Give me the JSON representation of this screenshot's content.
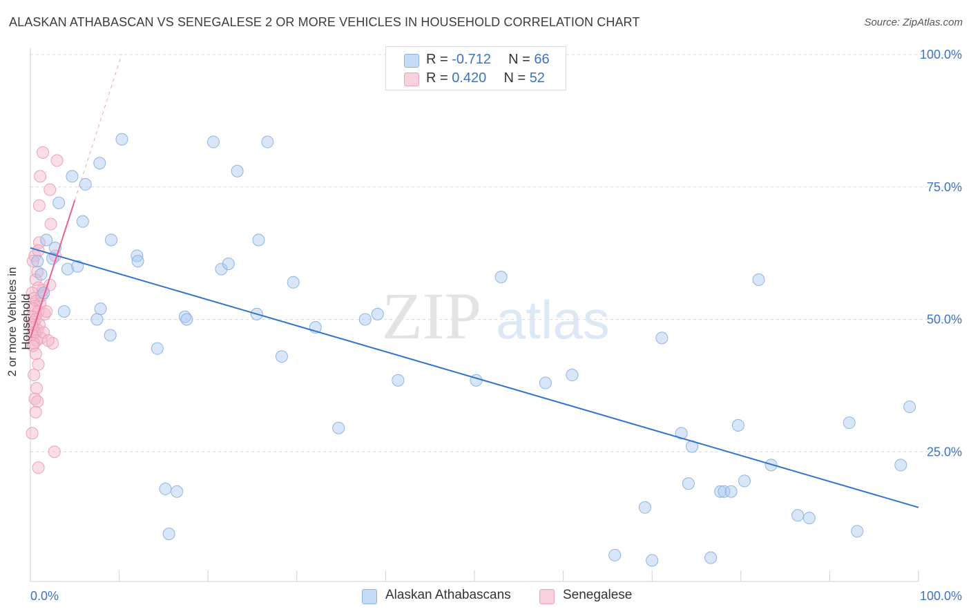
{
  "title": "ALASKAN ATHABASCAN VS SENEGALESE 2 OR MORE VEHICLES IN HOUSEHOLD CORRELATION CHART",
  "source": "Source: ZipAtlas.com",
  "watermark": {
    "zip": "ZIP",
    "atlas": "atlas"
  },
  "legend": {
    "rows": [
      {
        "r_label": "R = ",
        "r_value": "-0.712",
        "n_label": "N = ",
        "n_value": "66"
      },
      {
        "r_label": "R = ",
        "r_value": "0.420",
        "n_label": "N = ",
        "n_value": "52"
      }
    ]
  },
  "colors": {
    "blue": "#a9c8ef",
    "blue_line": "#2f73cc",
    "pink": "#f4b6c9",
    "pink_line": "#e8608f",
    "axis_text": "#3b73c4"
  },
  "chart_data": {
    "type": "scatter",
    "title": "ALASKAN ATHABASCAN VS SENEGALESE 2 OR MORE VEHICLES IN HOUSEHOLD CORRELATION CHART",
    "xlabel": "",
    "ylabel": "2 or more Vehicles in Household",
    "xlim": [
      0,
      100
    ],
    "ylim": [
      0,
      102
    ],
    "x_tick_labels": [
      "0.0%",
      "100.0%"
    ],
    "y_tick_labels": [
      "25.0%",
      "50.0%",
      "75.0%",
      "100.0%"
    ],
    "y_ticks": [
      25,
      50,
      75,
      100
    ],
    "grid": "horizontal dashed",
    "legend_position": "top-center",
    "series": [
      {
        "name": "Alaskan Athabascans",
        "color": "#a9c8ef",
        "points": [
          [
            0.8,
            61
          ],
          [
            1.2,
            58.5
          ],
          [
            1.8,
            65
          ],
          [
            2.5,
            61.5
          ],
          [
            3.2,
            72
          ],
          [
            3.8,
            51.5
          ],
          [
            4.2,
            59.5
          ],
          [
            4.7,
            77
          ],
          [
            5.3,
            60
          ],
          [
            5.9,
            68.5
          ],
          [
            6.2,
            75.5
          ],
          [
            7.5,
            50
          ],
          [
            7.8,
            79.5
          ],
          [
            7.9,
            52
          ],
          [
            9.0,
            47
          ],
          [
            9.1,
            65
          ],
          [
            10.3,
            84
          ],
          [
            12.0,
            62
          ],
          [
            12.1,
            61
          ],
          [
            14.3,
            44.5
          ],
          [
            15.2,
            18
          ],
          [
            15.6,
            9.5
          ],
          [
            16.5,
            17.5
          ],
          [
            17.4,
            50.5
          ],
          [
            17.6,
            50
          ],
          [
            20.6,
            83.5
          ],
          [
            21.5,
            59.5
          ],
          [
            22.3,
            60.5
          ],
          [
            23.3,
            78
          ],
          [
            25.5,
            51
          ],
          [
            25.7,
            65
          ],
          [
            26.7,
            83.5
          ],
          [
            28.3,
            43
          ],
          [
            29.6,
            57
          ],
          [
            32.1,
            48.5
          ],
          [
            34.7,
            29.5
          ],
          [
            37.7,
            50
          ],
          [
            39.1,
            51
          ],
          [
            41.4,
            38.5
          ],
          [
            50.2,
            38.5
          ],
          [
            53.0,
            58
          ],
          [
            58.0,
            38
          ],
          [
            61.0,
            39.5
          ],
          [
            65.8,
            5.5
          ],
          [
            69.2,
            14.5
          ],
          [
            70.0,
            4.5
          ],
          [
            71.1,
            46.5
          ],
          [
            73.3,
            28.5
          ],
          [
            74.1,
            19
          ],
          [
            74.5,
            26
          ],
          [
            76.6,
            5
          ],
          [
            77.7,
            17.5
          ],
          [
            78.1,
            17.5
          ],
          [
            78.9,
            17.5
          ],
          [
            79.7,
            30
          ],
          [
            80.4,
            19.5
          ],
          [
            82.0,
            57.5
          ],
          [
            83.4,
            22.5
          ],
          [
            86.4,
            13
          ],
          [
            87.7,
            12.5
          ],
          [
            92.2,
            30.5
          ],
          [
            93.1,
            10
          ],
          [
            98.0,
            22.5
          ],
          [
            99.0,
            33.5
          ],
          [
            1.5,
            55
          ],
          [
            2.8,
            63.5
          ]
        ]
      },
      {
        "name": "Senegalese",
        "color": "#f4b6c9",
        "points": [
          [
            1.0,
            64.5
          ],
          [
            1.4,
            81.5
          ],
          [
            1.1,
            77
          ],
          [
            1.0,
            71.5
          ],
          [
            2.2,
            74.5
          ],
          [
            2.3,
            68
          ],
          [
            3.0,
            80
          ],
          [
            0.5,
            62
          ],
          [
            0.3,
            61
          ],
          [
            0.8,
            59
          ],
          [
            0.6,
            57.5
          ],
          [
            0.9,
            56
          ],
          [
            1.4,
            55.5
          ],
          [
            0.2,
            55
          ],
          [
            0.4,
            54
          ],
          [
            0.7,
            53.5
          ],
          [
            1.1,
            53
          ],
          [
            0.5,
            52.5
          ],
          [
            0.3,
            52
          ],
          [
            0.9,
            51.5
          ],
          [
            1.6,
            51
          ],
          [
            0.2,
            50.5
          ],
          [
            0.6,
            50
          ],
          [
            0.4,
            49.5
          ],
          [
            1.0,
            49
          ],
          [
            0.3,
            48.5
          ],
          [
            0.8,
            48
          ],
          [
            0.5,
            47.5
          ],
          [
            0.2,
            47
          ],
          [
            1.2,
            46.5
          ],
          [
            0.7,
            46
          ],
          [
            0.4,
            45.5
          ],
          [
            0.3,
            45
          ],
          [
            2.5,
            45.5
          ],
          [
            0.6,
            43.5
          ],
          [
            0.9,
            41.5
          ],
          [
            0.4,
            39.5
          ],
          [
            0.7,
            37
          ],
          [
            0.5,
            35
          ],
          [
            0.8,
            34.5
          ],
          [
            0.6,
            32.5
          ],
          [
            0.2,
            28.5
          ],
          [
            2.7,
            25
          ],
          [
            0.9,
            22
          ],
          [
            1.5,
            47.5
          ],
          [
            2.0,
            46
          ],
          [
            2.8,
            62
          ],
          [
            2.2,
            56.5
          ],
          [
            1.8,
            51.5
          ],
          [
            1.3,
            54.5
          ],
          [
            0.9,
            63
          ],
          [
            0.2,
            49
          ]
        ]
      }
    ],
    "trendlines": [
      {
        "series": "Alaskan Athabascans",
        "x": [
          0,
          100
        ],
        "y": [
          63.5,
          14.5
        ]
      },
      {
        "series": "Senegalese",
        "x": [
          0,
          5
        ],
        "y": [
          46.5,
          72.5
        ],
        "extrapolated_to": [
          10,
          100
        ]
      }
    ]
  }
}
